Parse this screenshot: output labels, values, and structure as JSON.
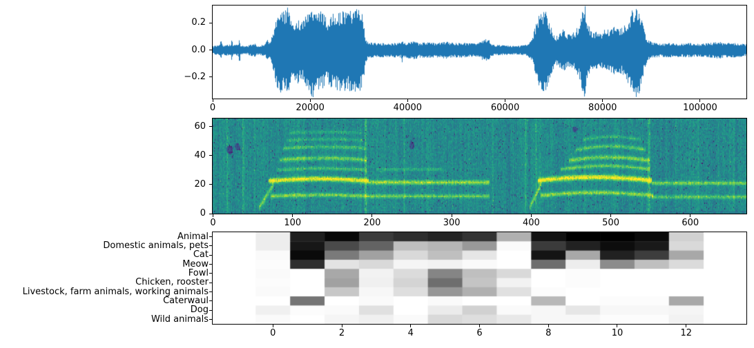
{
  "figure": {
    "background": "#ffffff",
    "waveform_color": "#1f77b4",
    "spine_color": "#000000",
    "description": "Audio analysis figure: waveform, spectrogram, animal-class activation heatmap"
  },
  "chart_data": [
    {
      "type": "line",
      "name": "waveform",
      "xlim": [
        0,
        109500
      ],
      "ylim": [
        -0.36,
        0.33
      ],
      "xticks": [
        0,
        20000,
        40000,
        60000,
        80000,
        100000
      ],
      "xtick_labels": [
        "0",
        "20000",
        "40000",
        "60000",
        "80000",
        "100000"
      ],
      "yticks": [
        0.2,
        0.0,
        -0.2
      ],
      "ytick_labels": [
        "0.2",
        "0.0",
        "−0.2"
      ],
      "color": "#1f77b4",
      "envelope": [
        [
          0,
          0.028
        ],
        [
          1400,
          0.034
        ],
        [
          1700,
          0.07
        ],
        [
          2000,
          0.034
        ],
        [
          3800,
          0.04
        ],
        [
          3970,
          0.09
        ],
        [
          4150,
          0.034
        ],
        [
          5300,
          0.04
        ],
        [
          5500,
          0.1
        ],
        [
          5750,
          0.034
        ],
        [
          7000,
          0.028
        ],
        [
          8600,
          0.05
        ],
        [
          9000,
          0.032
        ],
        [
          10800,
          0.04
        ],
        [
          11200,
          0.08
        ],
        [
          11500,
          0.05
        ],
        [
          12100,
          0.09
        ],
        [
          12600,
          0.16
        ],
        [
          13100,
          0.25
        ],
        [
          13700,
          0.3
        ],
        [
          14300,
          0.27
        ],
        [
          15000,
          0.29
        ],
        [
          15400,
          0.31
        ],
        [
          16000,
          0.23
        ],
        [
          16700,
          0.2
        ],
        [
          17400,
          0.24
        ],
        [
          18100,
          0.19
        ],
        [
          18800,
          0.22
        ],
        [
          19400,
          0.29
        ],
        [
          20100,
          0.31
        ],
        [
          20600,
          0.32
        ],
        [
          21300,
          0.26
        ],
        [
          22100,
          0.28
        ],
        [
          22900,
          0.25
        ],
        [
          23600,
          0.22
        ],
        [
          24400,
          0.26
        ],
        [
          25600,
          0.27
        ],
        [
          26600,
          0.28
        ],
        [
          27600,
          0.27
        ],
        [
          28400,
          0.29
        ],
        [
          29100,
          0.27
        ],
        [
          29700,
          0.31
        ],
        [
          30300,
          0.28
        ],
        [
          30900,
          0.25
        ],
        [
          31300,
          0.09
        ],
        [
          31900,
          0.055
        ],
        [
          33500,
          0.05
        ],
        [
          36000,
          0.048
        ],
        [
          38600,
          0.052
        ],
        [
          38900,
          0.085
        ],
        [
          39200,
          0.05
        ],
        [
          41700,
          0.065
        ],
        [
          42100,
          0.05
        ],
        [
          44000,
          0.055
        ],
        [
          46000,
          0.05
        ],
        [
          47900,
          0.06
        ],
        [
          49500,
          0.05
        ],
        [
          52000,
          0.05
        ],
        [
          54200,
          0.045
        ],
        [
          56600,
          0.09
        ],
        [
          57100,
          0.04
        ],
        [
          59000,
          0.035
        ],
        [
          61000,
          0.03
        ],
        [
          63000,
          0.03
        ],
        [
          64600,
          0.04
        ],
        [
          65500,
          0.07
        ],
        [
          66200,
          0.17
        ],
        [
          67000,
          0.25
        ],
        [
          67800,
          0.285
        ],
        [
          68500,
          0.27
        ],
        [
          69200,
          0.19
        ],
        [
          69900,
          0.13
        ],
        [
          70500,
          0.1
        ],
        [
          71200,
          0.12
        ],
        [
          72000,
          0.15
        ],
        [
          72800,
          0.11
        ],
        [
          73600,
          0.12
        ],
        [
          74500,
          0.14
        ],
        [
          75300,
          0.2
        ],
        [
          76000,
          0.3
        ],
        [
          76400,
          0.33
        ],
        [
          76900,
          0.22
        ],
        [
          77500,
          0.14
        ],
        [
          78200,
          0.12
        ],
        [
          79000,
          0.14
        ],
        [
          79800,
          0.12
        ],
        [
          80600,
          0.16
        ],
        [
          81400,
          0.14
        ],
        [
          82200,
          0.17
        ],
        [
          83000,
          0.15
        ],
        [
          83800,
          0.16
        ],
        [
          84700,
          0.19
        ],
        [
          85600,
          0.25
        ],
        [
          86400,
          0.31
        ],
        [
          87000,
          0.32
        ],
        [
          87600,
          0.29
        ],
        [
          88100,
          0.21
        ],
        [
          88700,
          0.12
        ],
        [
          89300,
          0.07
        ],
        [
          90200,
          0.055
        ],
        [
          92000,
          0.045
        ],
        [
          94000,
          0.05
        ],
        [
          96000,
          0.045
        ],
        [
          98000,
          0.05
        ],
        [
          100000,
          0.045
        ],
        [
          102000,
          0.05
        ],
        [
          103800,
          0.06
        ],
        [
          105000,
          0.05
        ],
        [
          107000,
          0.05
        ],
        [
          109400,
          0.042
        ]
      ]
    },
    {
      "type": "heatmap",
      "name": "spectrogram",
      "colormap": "viridis",
      "xlim": [
        -0.5,
        670.5
      ],
      "ylim": [
        0,
        65.5
      ],
      "xticks": [
        0,
        100,
        200,
        300,
        400,
        500,
        600
      ],
      "xtick_labels": [
        "0",
        "100",
        "200",
        "300",
        "400",
        "500",
        "600"
      ],
      "yticks": [
        0,
        20,
        40,
        60
      ],
      "ytick_labels": [
        "0",
        "20",
        "40",
        "60"
      ],
      "bands": [
        {
          "type": "diag",
          "x0": 58,
          "x1": 76,
          "y0": 4,
          "y1": 20,
          "th": 2.2,
          "i": 0.3
        },
        {
          "x0": 70,
          "x1": 196,
          "y": 22.5,
          "th": 1.7,
          "i": 0.55,
          "arc": 1.5
        },
        {
          "x0": 72,
          "x1": 196,
          "y": 12,
          "th": 1.4,
          "i": 0.34,
          "arc": 0.8
        },
        {
          "x0": 80,
          "x1": 193,
          "y": 30,
          "th": 1.2,
          "i": 0.22,
          "arc": 1.2
        },
        {
          "x0": 84,
          "x1": 193,
          "y": 37,
          "th": 1.5,
          "i": 0.3,
          "arc": 1.2
        },
        {
          "x0": 88,
          "x1": 191,
          "y": 45,
          "th": 1.3,
          "i": 0.22,
          "arc": 1.0
        },
        {
          "x0": 92,
          "x1": 189,
          "y": 50.5,
          "th": 1.1,
          "i": 0.16,
          "arc": 0.8
        },
        {
          "x0": 96,
          "x1": 186,
          "y": 55.5,
          "th": 1.1,
          "i": 0.14,
          "arc": 0.8
        },
        {
          "x0": 196,
          "x1": 348,
          "y": 21.5,
          "th": 1.5,
          "i": 0.38
        },
        {
          "x0": 196,
          "x1": 348,
          "y": 12,
          "th": 1.3,
          "i": 0.3
        },
        {
          "x0": 205,
          "x1": 290,
          "y": 30.5,
          "th": 1.1,
          "i": 0.15
        },
        {
          "type": "diag",
          "x0": 398,
          "x1": 413,
          "y0": 4,
          "y1": 21,
          "th": 2.2,
          "i": 0.28
        },
        {
          "x0": 408,
          "x1": 552,
          "y": 22.8,
          "th": 1.8,
          "i": 0.55,
          "arc": 2.3
        },
        {
          "x0": 412,
          "x1": 553,
          "y": 12.5,
          "th": 1.5,
          "i": 0.36,
          "arc": 2.0
        },
        {
          "x0": 437,
          "x1": 549,
          "y": 30.5,
          "th": 1.3,
          "i": 0.3,
          "arc": 2.4
        },
        {
          "x0": 447,
          "x1": 549,
          "y": 36.5,
          "th": 1.5,
          "i": 0.33,
          "arc": 2.4
        },
        {
          "x0": 456,
          "x1": 545,
          "y": 44,
          "th": 1.3,
          "i": 0.26,
          "arc": 2.4
        },
        {
          "x0": 465,
          "x1": 538,
          "y": 51,
          "th": 1.1,
          "i": 0.18,
          "arc": 2.0
        },
        {
          "x0": 552,
          "x1": 671,
          "y": 21,
          "th": 1.4,
          "i": 0.32
        },
        {
          "x0": 552,
          "x1": 671,
          "y": 11.5,
          "th": 1.3,
          "i": 0.28
        }
      ],
      "streaks": [
        {
          "x": 18,
          "w": 3,
          "d": 0.1
        },
        {
          "x": 38,
          "w": 2,
          "d": 0.12
        },
        {
          "x": 52,
          "w": 2,
          "d": 0.08
        },
        {
          "x": 192,
          "w": 3,
          "d": 0.14
        },
        {
          "x": 241,
          "w": 2,
          "d": 0.07
        },
        {
          "x": 352,
          "w": 2,
          "d": 0.1
        },
        {
          "x": 393,
          "w": 2,
          "d": 0.08
        },
        {
          "x": 406,
          "w": 3,
          "d": 0.12
        },
        {
          "x": 548,
          "w": 3,
          "d": 0.13
        },
        {
          "x": 610,
          "w": 2,
          "d": 0.07
        },
        {
          "x": 655,
          "w": 2,
          "d": 0.08
        }
      ],
      "patches": [
        {
          "x": 21,
          "y": 44,
          "rx": 4,
          "ry": 3,
          "d": -0.28
        },
        {
          "x": 31,
          "y": 46,
          "rx": 3,
          "ry": 2.5,
          "d": -0.22
        },
        {
          "x": 250,
          "y": 47,
          "rx": 3,
          "ry": 2.5,
          "d": -0.2
        },
        {
          "x": 455,
          "y": 58,
          "rx": 3,
          "ry": 2,
          "d": -0.2
        }
      ]
    },
    {
      "type": "heatmap",
      "name": "class-activations",
      "colormap": "gray-inverted (0=white, 1=black)",
      "xlim": [
        -1.75,
        13.75
      ],
      "xticks": [
        0,
        2,
        4,
        6,
        8,
        10,
        12
      ],
      "xtick_labels": [
        "0",
        "2",
        "4",
        "6",
        "8",
        "10",
        "12"
      ],
      "columns": [
        0,
        1,
        2,
        3,
        4,
        5,
        6,
        7,
        8,
        9,
        10,
        11,
        12
      ],
      "rows": [
        "Animal",
        "Domestic animals, pets",
        "Cat",
        "Meow",
        "Fowl",
        "Chicken, rooster",
        "Livestock, farm animals, working animals",
        "Caterwaul",
        "Dog",
        "Wild animals"
      ],
      "values": [
        [
          0.07,
          0.88,
          0.97,
          0.77,
          0.82,
          0.86,
          0.8,
          0.31,
          0.93,
          1.0,
          1.0,
          0.96,
          0.18
        ],
        [
          0.07,
          0.91,
          0.71,
          0.61,
          0.25,
          0.29,
          0.4,
          0.02,
          0.77,
          0.87,
          0.95,
          0.9,
          0.15
        ],
        [
          0.02,
          0.96,
          0.52,
          0.37,
          0.15,
          0.25,
          0.1,
          0.0,
          0.92,
          0.34,
          0.87,
          0.76,
          0.34
        ],
        [
          0.01,
          0.82,
          0.11,
          0.15,
          0.04,
          0.05,
          0.02,
          0.0,
          0.57,
          0.07,
          0.45,
          0.25,
          0.14
        ],
        [
          0.02,
          0.0,
          0.34,
          0.05,
          0.14,
          0.48,
          0.25,
          0.15,
          0.0,
          0.01,
          0.0,
          0.0,
          0.0
        ],
        [
          0.01,
          0.0,
          0.37,
          0.06,
          0.17,
          0.57,
          0.23,
          0.05,
          0.0,
          0.01,
          0.0,
          0.0,
          0.0
        ],
        [
          0.02,
          0.0,
          0.22,
          0.03,
          0.13,
          0.41,
          0.31,
          0.12,
          0.01,
          0.0,
          0.0,
          0.0,
          0.0
        ],
        [
          0.0,
          0.54,
          0.0,
          0.02,
          0.0,
          0.02,
          0.0,
          0.0,
          0.28,
          0.0,
          0.01,
          0.01,
          0.34
        ],
        [
          0.06,
          0.01,
          0.02,
          0.12,
          0.0,
          0.08,
          0.18,
          0.02,
          0.03,
          0.1,
          0.03,
          0.03,
          0.04
        ],
        [
          0.02,
          0.0,
          0.04,
          0.06,
          0.02,
          0.15,
          0.13,
          0.09,
          0.03,
          0.03,
          0.01,
          0.01,
          0.05
        ]
      ]
    }
  ]
}
